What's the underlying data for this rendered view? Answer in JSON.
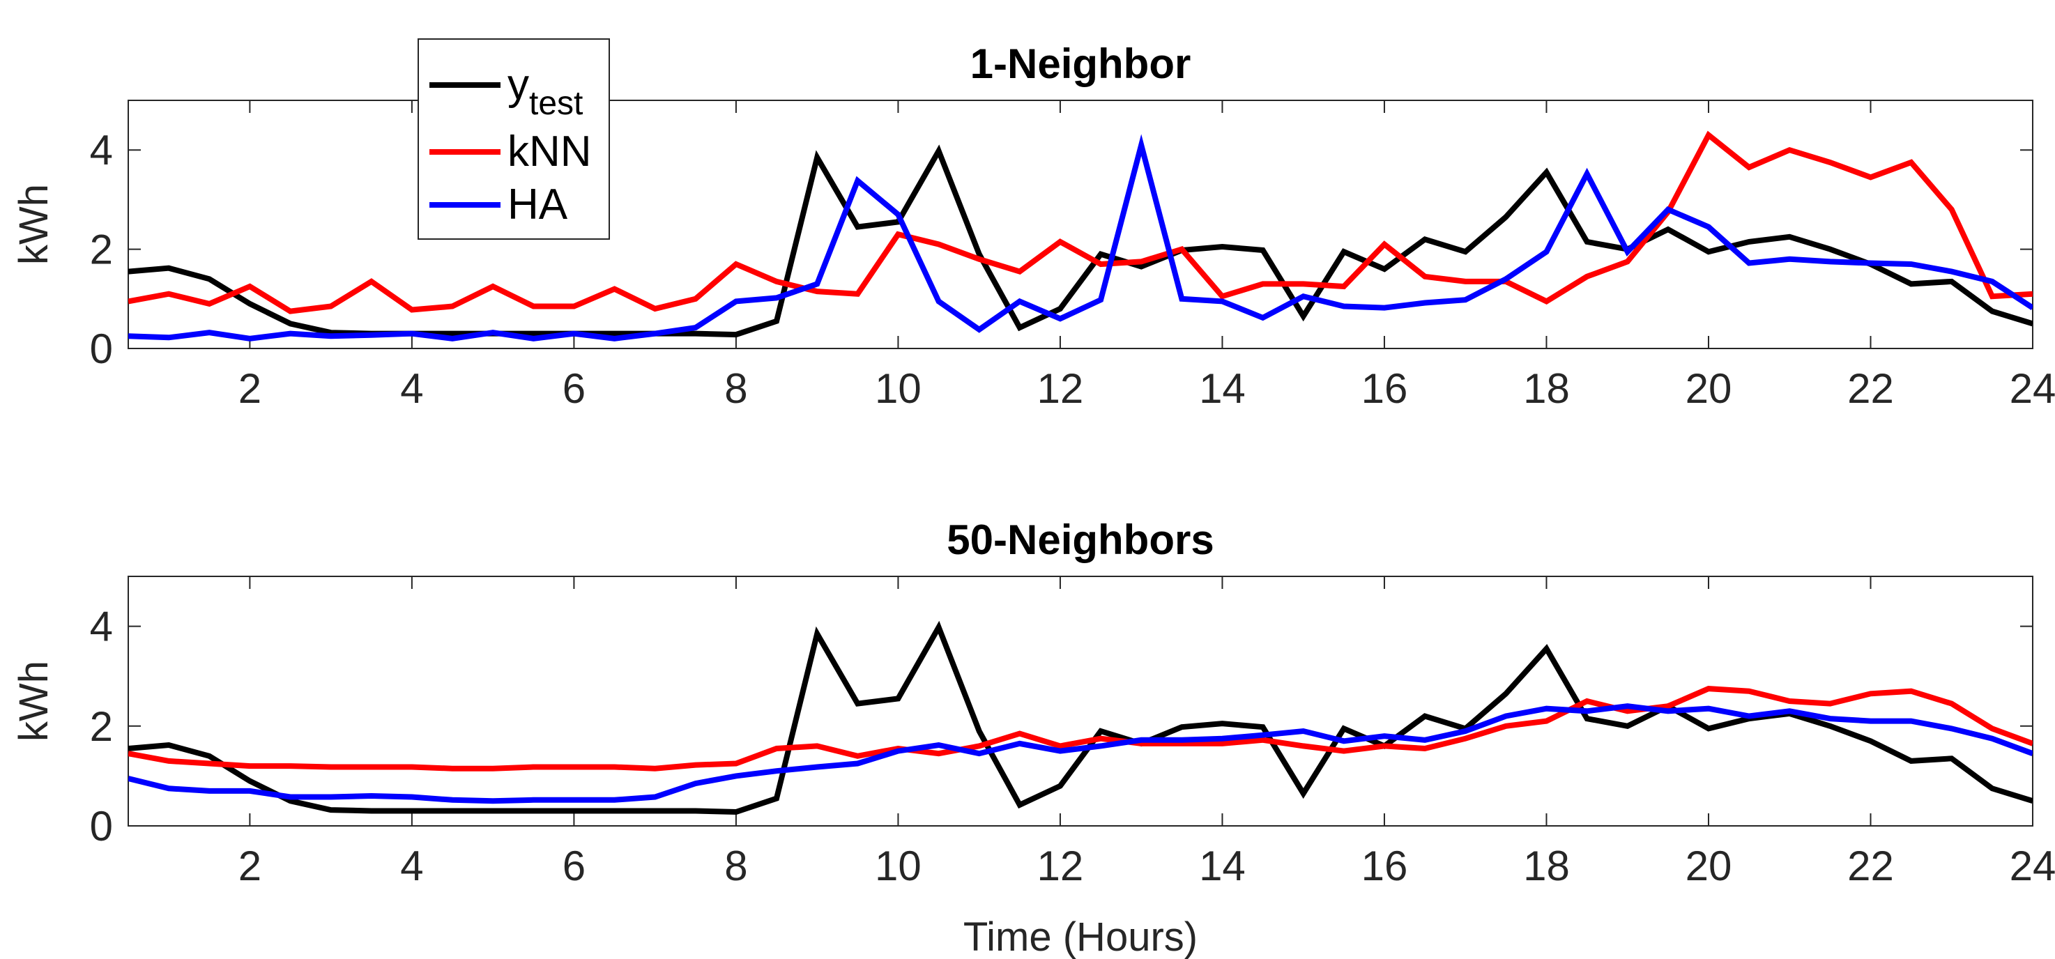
{
  "chart_data": [
    {
      "type": "line",
      "title": "1-Neighbor",
      "xlabel": "",
      "ylabel": "kWh",
      "xlim": [
        0.5,
        24
      ],
      "ylim": [
        0,
        5
      ],
      "xticks": [
        2,
        4,
        6,
        8,
        10,
        12,
        14,
        16,
        18,
        20,
        22,
        24
      ],
      "yticks": [
        0,
        2,
        4
      ],
      "grid": false,
      "legend": "top-left",
      "x": [
        0.5,
        1,
        1.5,
        2,
        2.5,
        3,
        3.5,
        4,
        4.5,
        5,
        5.5,
        6,
        6.5,
        7,
        7.5,
        8,
        8.5,
        9,
        9.5,
        10,
        10.5,
        11,
        11.5,
        12,
        12.5,
        13,
        13.5,
        14,
        14.5,
        15,
        15.5,
        16,
        16.5,
        17,
        17.5,
        18,
        18.5,
        19,
        19.5,
        20,
        20.5,
        21,
        21.5,
        22,
        22.5,
        23,
        23.5,
        24
      ],
      "series": [
        {
          "name": "y",
          "name_subscript": "test",
          "color": "#000000",
          "values": [
            1.55,
            1.62,
            1.4,
            0.9,
            0.5,
            0.32,
            0.3,
            0.3,
            0.3,
            0.3,
            0.3,
            0.3,
            0.3,
            0.3,
            0.3,
            0.28,
            0.55,
            3.85,
            2.45,
            2.55,
            3.98,
            1.9,
            0.42,
            0.8,
            1.9,
            1.65,
            1.98,
            2.05,
            1.98,
            0.65,
            1.95,
            1.6,
            2.2,
            1.95,
            2.65,
            3.55,
            2.15,
            2.0,
            2.4,
            1.95,
            2.15,
            2.25,
            2.0,
            1.7,
            1.3,
            1.35,
            0.75,
            0.5
          ]
        },
        {
          "name": "kNN",
          "color": "#ff0000",
          "values": [
            0.95,
            1.1,
            0.9,
            1.25,
            0.75,
            0.85,
            1.35,
            0.78,
            0.85,
            1.25,
            0.85,
            0.85,
            1.2,
            0.8,
            1.0,
            1.7,
            1.35,
            1.15,
            1.1,
            2.3,
            2.1,
            1.8,
            1.55,
            2.15,
            1.7,
            1.75,
            2.0,
            1.05,
            1.3,
            1.3,
            1.25,
            2.1,
            1.45,
            1.35,
            1.35,
            0.95,
            1.45,
            1.75,
            2.75,
            4.3,
            3.65,
            4.0,
            3.75,
            3.45,
            3.75,
            2.8,
            1.05,
            1.1
          ]
        },
        {
          "name": "HA",
          "color": "#0000ff",
          "values": [
            0.25,
            0.22,
            0.32,
            0.2,
            0.3,
            0.25,
            0.27,
            0.3,
            0.2,
            0.32,
            0.2,
            0.3,
            0.2,
            0.3,
            0.42,
            0.95,
            1.02,
            1.3,
            3.38,
            2.7,
            0.95,
            0.38,
            0.95,
            0.6,
            0.98,
            4.1,
            1.0,
            0.95,
            0.62,
            1.05,
            0.85,
            0.82,
            0.92,
            0.98,
            1.4,
            1.95,
            3.52,
            1.95,
            2.8,
            2.45,
            1.72,
            1.8,
            1.75,
            1.72,
            1.7,
            1.55,
            1.35,
            0.82
          ]
        }
      ]
    },
    {
      "type": "line",
      "title": "50-Neighbors",
      "xlabel": "Time (Hours)",
      "ylabel": "kWh",
      "xlim": [
        0.5,
        24
      ],
      "ylim": [
        0,
        5
      ],
      "xticks": [
        2,
        4,
        6,
        8,
        10,
        12,
        14,
        16,
        18,
        20,
        22,
        24
      ],
      "yticks": [
        0,
        2,
        4
      ],
      "grid": false,
      "x": [
        0.5,
        1,
        1.5,
        2,
        2.5,
        3,
        3.5,
        4,
        4.5,
        5,
        5.5,
        6,
        6.5,
        7,
        7.5,
        8,
        8.5,
        9,
        9.5,
        10,
        10.5,
        11,
        11.5,
        12,
        12.5,
        13,
        13.5,
        14,
        14.5,
        15,
        15.5,
        16,
        16.5,
        17,
        17.5,
        18,
        18.5,
        19,
        19.5,
        20,
        20.5,
        21,
        21.5,
        22,
        22.5,
        23,
        23.5,
        24
      ],
      "series": [
        {
          "name": "y",
          "name_subscript": "test",
          "color": "#000000",
          "values": [
            1.55,
            1.62,
            1.4,
            0.9,
            0.5,
            0.32,
            0.3,
            0.3,
            0.3,
            0.3,
            0.3,
            0.3,
            0.3,
            0.3,
            0.3,
            0.28,
            0.55,
            3.85,
            2.45,
            2.55,
            3.98,
            1.9,
            0.42,
            0.8,
            1.9,
            1.65,
            1.98,
            2.05,
            1.98,
            0.65,
            1.95,
            1.6,
            2.2,
            1.95,
            2.65,
            3.55,
            2.15,
            2.0,
            2.4,
            1.95,
            2.15,
            2.25,
            2.0,
            1.7,
            1.3,
            1.35,
            0.75,
            0.5
          ]
        },
        {
          "name": "kNN",
          "color": "#ff0000",
          "values": [
            1.45,
            1.3,
            1.25,
            1.2,
            1.2,
            1.18,
            1.18,
            1.18,
            1.15,
            1.15,
            1.18,
            1.18,
            1.18,
            1.15,
            1.22,
            1.25,
            1.55,
            1.6,
            1.4,
            1.55,
            1.45,
            1.6,
            1.85,
            1.6,
            1.75,
            1.65,
            1.65,
            1.65,
            1.72,
            1.6,
            1.5,
            1.6,
            1.55,
            1.75,
            2.0,
            2.1,
            2.5,
            2.3,
            2.4,
            2.75,
            2.7,
            2.5,
            2.45,
            2.65,
            2.7,
            2.45,
            1.95,
            1.65
          ]
        },
        {
          "name": "HA",
          "color": "#0000ff",
          "values": [
            0.95,
            0.75,
            0.7,
            0.7,
            0.58,
            0.58,
            0.6,
            0.58,
            0.52,
            0.5,
            0.52,
            0.52,
            0.52,
            0.58,
            0.85,
            1.0,
            1.1,
            1.18,
            1.25,
            1.5,
            1.62,
            1.45,
            1.65,
            1.5,
            1.6,
            1.72,
            1.72,
            1.75,
            1.82,
            1.9,
            1.7,
            1.8,
            1.72,
            1.9,
            2.2,
            2.35,
            2.3,
            2.4,
            2.3,
            2.35,
            2.2,
            2.3,
            2.15,
            2.1,
            2.1,
            1.95,
            1.75,
            1.45
          ]
        }
      ]
    }
  ]
}
